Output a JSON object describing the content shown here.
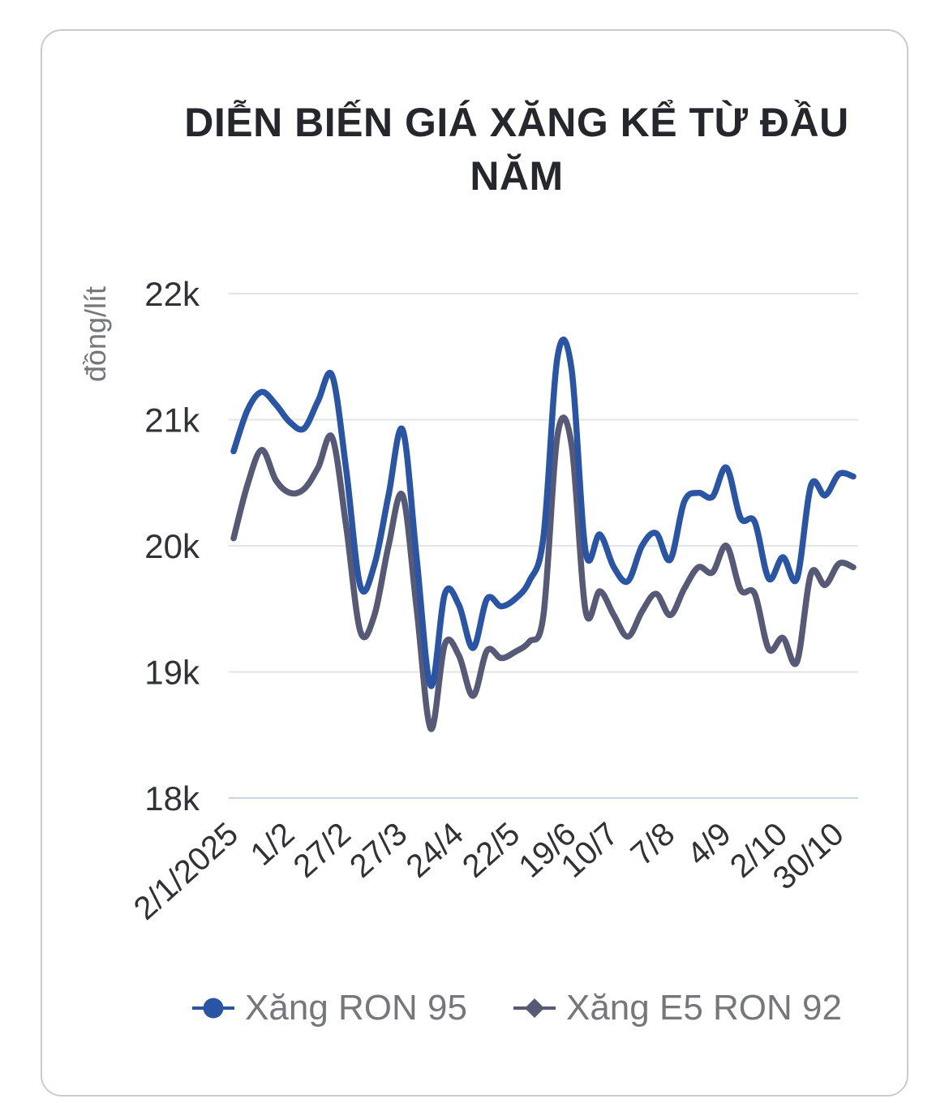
{
  "card": {
    "background": "#ffffff",
    "border_color": "#cbcbcb"
  },
  "title_lines": [
    "DIỄN BIẾN GIÁ XĂNG KỂ TỪ ĐẦU",
    "NĂM"
  ],
  "chart_data": {
    "type": "line",
    "title": "DIỄN BIẾN GIÁ XĂNG KỂ TỪ ĐẦU NĂM",
    "values_unit": "nghìn đồng/lít (k)",
    "grid": "horizontal",
    "legend_position": "bottom",
    "y_axis": {
      "title": "đồng/lít",
      "min": 18,
      "max": 22,
      "ticks": [
        {
          "value": 22,
          "label": "22k"
        },
        {
          "value": 21,
          "label": "21k"
        },
        {
          "value": 20,
          "label": "20k"
        },
        {
          "value": 19,
          "label": "19k"
        },
        {
          "value": 18,
          "label": "18k"
        }
      ]
    },
    "x_axis": {
      "n_points": 45,
      "tick_labels": [
        {
          "index": 0,
          "label": "2/1/2025"
        },
        {
          "index": 4,
          "label": "1/2"
        },
        {
          "index": 8,
          "label": "27/2"
        },
        {
          "index": 12,
          "label": "27/3"
        },
        {
          "index": 16,
          "label": "24/4"
        },
        {
          "index": 20,
          "label": "22/5"
        },
        {
          "index": 24,
          "label": "19/6"
        },
        {
          "index": 27,
          "label": "10/7"
        },
        {
          "index": 31,
          "label": "7/8"
        },
        {
          "index": 35,
          "label": "4/9"
        },
        {
          "index": 39,
          "label": "2/10"
        },
        {
          "index": 43,
          "label": "30/10"
        }
      ]
    },
    "series": [
      {
        "name": "Xăng RON 95",
        "color": "#2a54a4",
        "marker": "circle",
        "values": [
          20.75,
          21.08,
          21.22,
          21.12,
          20.98,
          20.93,
          21.15,
          21.35,
          20.6,
          19.68,
          19.85,
          20.4,
          20.92,
          19.9,
          18.89,
          19.62,
          19.53,
          19.19,
          19.58,
          19.52,
          19.58,
          19.72,
          20.07,
          21.5,
          21.4,
          19.95,
          20.09,
          19.83,
          19.72,
          20.0,
          20.1,
          19.89,
          20.35,
          20.42,
          20.39,
          20.62,
          20.22,
          20.19,
          19.74,
          19.91,
          19.74,
          20.48,
          20.4,
          20.57,
          20.55
        ]
      },
      {
        "name": "Xăng E5 RON 92",
        "color": "#575a76",
        "marker": "diamond",
        "values": [
          20.06,
          20.49,
          20.76,
          20.52,
          20.42,
          20.45,
          20.62,
          20.86,
          20.15,
          19.32,
          19.45,
          20.0,
          20.4,
          19.5,
          18.55,
          19.22,
          19.13,
          18.81,
          19.17,
          19.11,
          19.16,
          19.24,
          19.45,
          20.88,
          20.8,
          19.48,
          19.64,
          19.45,
          19.28,
          19.48,
          19.62,
          19.45,
          19.66,
          19.83,
          19.79,
          20.0,
          19.65,
          19.62,
          19.18,
          19.27,
          19.08,
          19.78,
          19.69,
          19.86,
          19.83
        ]
      }
    ],
    "colors": {
      "gridline": "#e4e4e6",
      "baseline": "#c9d4e0",
      "tick_text": "#303238",
      "axis_title_text": "#76777d",
      "title_text": "#26262d"
    }
  }
}
